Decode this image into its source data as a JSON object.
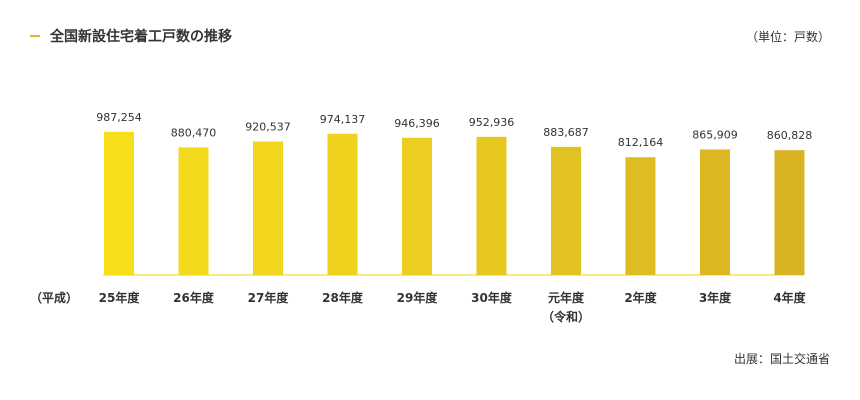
{
  "header": {
    "title": "全国新設住宅着工戸数の推移",
    "unit": "（単位：戸数）"
  },
  "source": "出展：国土交通省",
  "chart_data": {
    "type": "bar",
    "title": "全国新設住宅着工戸数の推移",
    "xlabel": "",
    "ylabel": "",
    "era_prefix": "（平成）",
    "categories": [
      "25年度",
      "26年度",
      "27年度",
      "28年度",
      "29年度",
      "30年度",
      "元年度",
      "2年度",
      "3年度",
      "4年度"
    ],
    "category_sublabels": [
      "",
      "",
      "",
      "",
      "",
      "",
      "（令和）",
      "",
      "",
      ""
    ],
    "values": [
      987254,
      880470,
      920537,
      974137,
      946396,
      952936,
      883687,
      812164,
      865909,
      860828
    ],
    "value_labels": [
      "987,254",
      "880,470",
      "920,537",
      "974,137",
      "946,396",
      "952,936",
      "883,687",
      "812,164",
      "865,909",
      "860,828"
    ],
    "ylim": [
      0,
      1000000
    ],
    "grid": false,
    "colors": [
      "#f7de1b",
      "#f4da1c",
      "#f1d61d",
      "#eed21e",
      "#ebce1f",
      "#e6c820",
      "#e2c221",
      "#debd22",
      "#dbb822",
      "#d8b323"
    ],
    "baseline_color": "#f5d000"
  }
}
